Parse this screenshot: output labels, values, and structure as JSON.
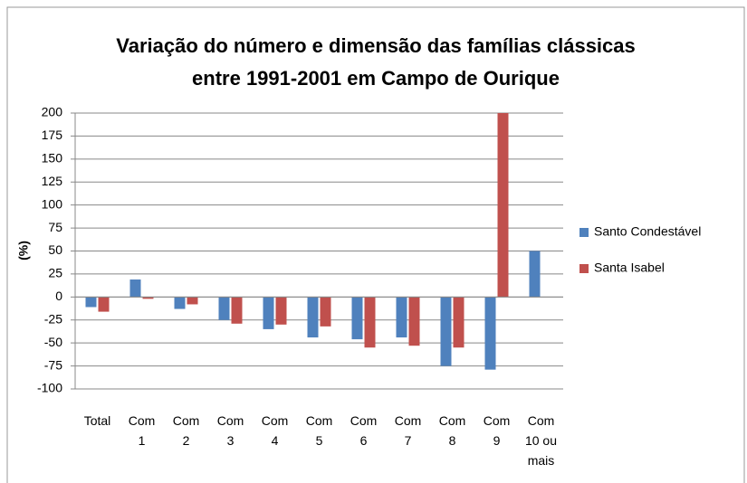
{
  "chart_data": {
    "type": "bar",
    "title": [
      "Variação do número e dimensão das famílias clássicas",
      "entre 1991-2001 em Campo de Ourique"
    ],
    "ylabel": "(%)",
    "categories": [
      "Total",
      "Com 1",
      "Com 2",
      "Com 3",
      "Com 4",
      "Com 5",
      "Com 6",
      "Com 7",
      "Com 8",
      "Com 9",
      "Com 10 ou mais"
    ],
    "series": [
      {
        "name": "Santo Condestável",
        "color": "#4f81bd",
        "values": [
          -11,
          19,
          -13,
          -25,
          -35,
          -44,
          -46,
          -44,
          -75,
          -79,
          50
        ]
      },
      {
        "name": "Santa Isabel",
        "color": "#c0504d",
        "values": [
          -16,
          -2,
          -8,
          -29,
          -30,
          -32,
          -55,
          -53,
          -55,
          200,
          null
        ]
      }
    ],
    "ylim": [
      -100,
      200
    ],
    "yticks": [
      -100,
      -75,
      -50,
      -25,
      0,
      25,
      50,
      75,
      100,
      125,
      150,
      175,
      200
    ],
    "grid": true,
    "legend": "right"
  }
}
